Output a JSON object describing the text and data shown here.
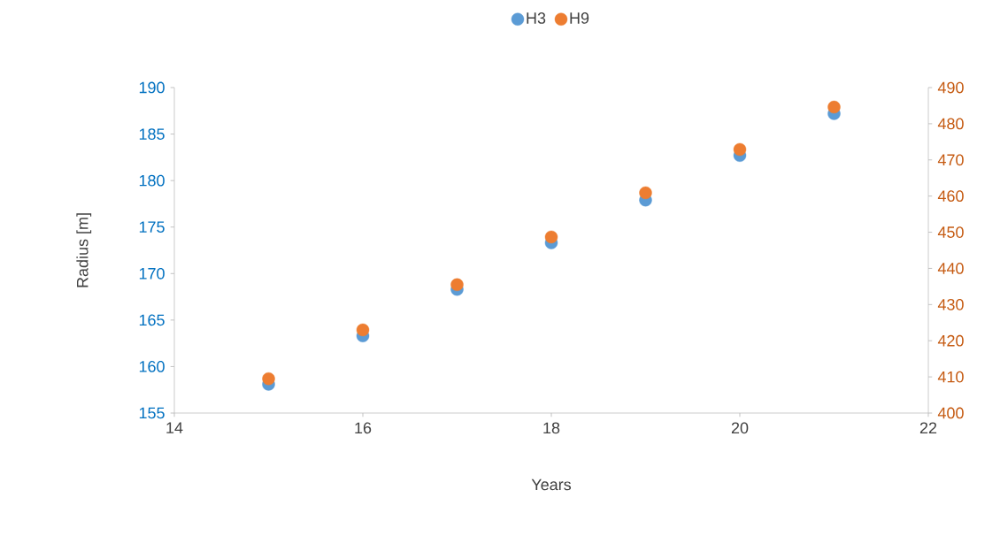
{
  "chart_data": {
    "type": "scatter",
    "xlabel": "Years",
    "ylabel": "Radius [m]",
    "x": [
      15,
      16,
      17,
      18,
      19,
      20,
      21
    ],
    "series": [
      {
        "name": "H3",
        "color": "#5b9bd5",
        "values": [
          158.1,
          163.3,
          168.3,
          173.3,
          177.9,
          182.7,
          187.2
        ]
      },
      {
        "name": "H9",
        "color": "#ed7d31",
        "axis": "y2",
        "values": [
          409.5,
          423.0,
          435.5,
          448.7,
          460.9,
          472.9,
          484.6
        ]
      }
    ],
    "xlim": [
      14,
      22
    ],
    "xticks": [
      14,
      16,
      18,
      20,
      22
    ],
    "ylim": [
      155,
      190
    ],
    "yticks": [
      155,
      160,
      165,
      170,
      175,
      180,
      185,
      190
    ],
    "y2lim": [
      400,
      490
    ],
    "y2ticks": [
      400,
      410,
      420,
      430,
      440,
      450,
      460,
      470,
      480,
      490
    ],
    "legend": "top",
    "marker": "circle"
  }
}
